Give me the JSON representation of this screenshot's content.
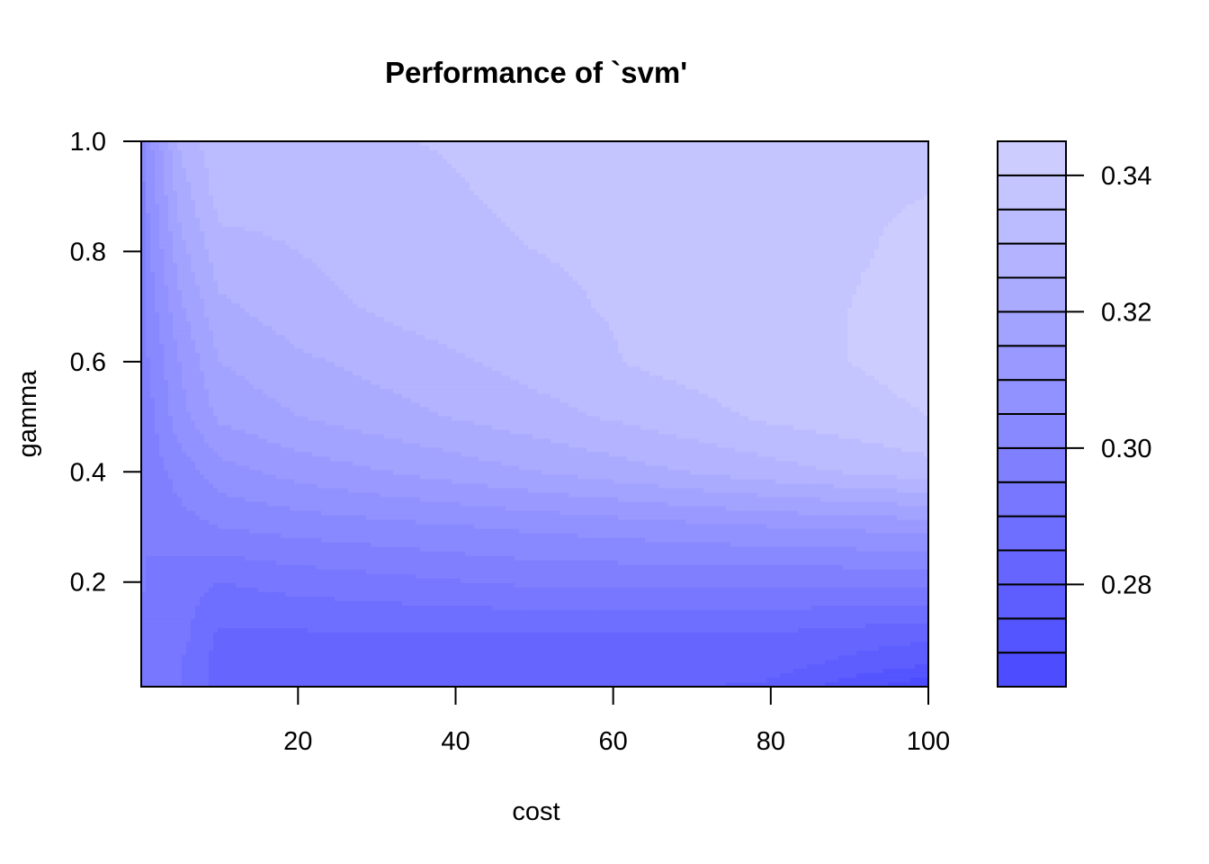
{
  "chart_data": {
    "type": "heatmap",
    "subtype": "filled-contour",
    "title": "Performance of `svm'",
    "xlabel": "cost",
    "ylabel": "gamma",
    "x_ticks": [
      20,
      40,
      60,
      80,
      100
    ],
    "y_ticks": [
      0.2,
      0.4,
      0.6,
      0.8,
      1.0
    ],
    "y_tick_labels": [
      "0.2",
      "0.4",
      "0.6",
      "0.8",
      "1.0"
    ],
    "xlim": [
      0.1,
      100
    ],
    "ylim": [
      0.01,
      1.0
    ],
    "x": [
      0.1,
      1,
      5,
      10,
      20,
      35,
      50,
      65,
      80,
      100
    ],
    "y": [
      0.01,
      0.05,
      0.1,
      0.2,
      0.3,
      0.4,
      0.5,
      0.6,
      0.7,
      0.8,
      0.9,
      1.0
    ],
    "z": [
      [
        0.29,
        0.29,
        0.29,
        0.283,
        0.283,
        0.283,
        0.282,
        0.281,
        0.279,
        0.266
      ],
      [
        0.292,
        0.291,
        0.29,
        0.283,
        0.283,
        0.283,
        0.283,
        0.283,
        0.282,
        0.275
      ],
      [
        0.294,
        0.293,
        0.292,
        0.284,
        0.284,
        0.284,
        0.284,
        0.284,
        0.284,
        0.281
      ],
      [
        0.296,
        0.294,
        0.292,
        0.29,
        0.292,
        0.294,
        0.296,
        0.296,
        0.296,
        0.296
      ],
      [
        0.296,
        0.296,
        0.298,
        0.3,
        0.302,
        0.304,
        0.306,
        0.308,
        0.31,
        0.312
      ],
      [
        0.296,
        0.297,
        0.302,
        0.308,
        0.312,
        0.316,
        0.32,
        0.324,
        0.328,
        0.333
      ],
      [
        0.296,
        0.298,
        0.308,
        0.316,
        0.32,
        0.324,
        0.328,
        0.332,
        0.336,
        0.34
      ],
      [
        0.296,
        0.3,
        0.31,
        0.32,
        0.324,
        0.328,
        0.332,
        0.336,
        0.338,
        0.342
      ],
      [
        0.297,
        0.302,
        0.314,
        0.324,
        0.328,
        0.332,
        0.334,
        0.336,
        0.338,
        0.342
      ],
      [
        0.297,
        0.304,
        0.318,
        0.328,
        0.33,
        0.333,
        0.335,
        0.336,
        0.338,
        0.341
      ],
      [
        0.297,
        0.306,
        0.322,
        0.332,
        0.332,
        0.334,
        0.336,
        0.338,
        0.339,
        0.34
      ],
      [
        0.297,
        0.308,
        0.326,
        0.334,
        0.334,
        0.335,
        0.336,
        0.338,
        0.339,
        0.34
      ]
    ],
    "levels": [
      0.265,
      0.27,
      0.275,
      0.28,
      0.285,
      0.29,
      0.295,
      0.3,
      0.305,
      0.31,
      0.315,
      0.32,
      0.325,
      0.33,
      0.335,
      0.34,
      0.345
    ],
    "legend_ticks": [
      0.28,
      0.3,
      0.32,
      0.34
    ],
    "legend_tick_labels": [
      "0.28",
      "0.30",
      "0.32",
      "0.34"
    ],
    "legend_placement": "right",
    "color_low": "#4d4dff",
    "color_high": "#ccccff",
    "grid": false
  }
}
